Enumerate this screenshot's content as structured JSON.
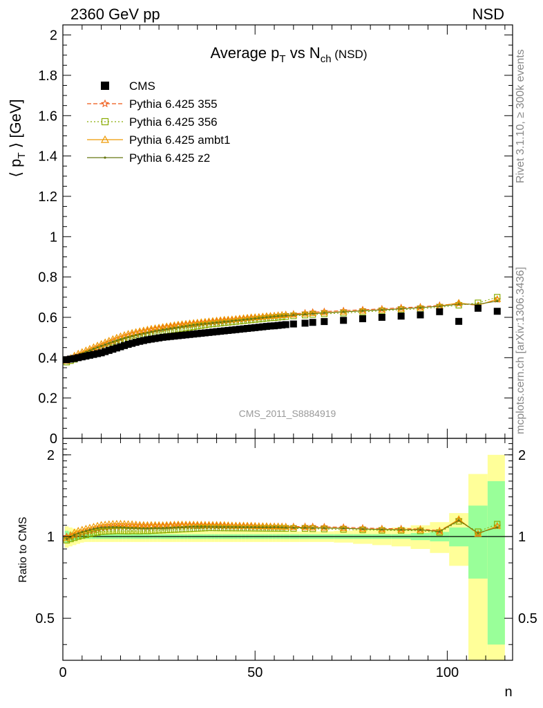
{
  "header": {
    "energy_label": "2360 GeV pp",
    "process_label": "NSD"
  },
  "side_labels": {
    "rivet": "Rivet 3.1.10, ≥ 300k events",
    "mcplots": "mcplots.cern.ch [arXiv:1306.3436]"
  },
  "chart_data": {
    "type": "scatter",
    "title": "Average p_T vs N_ch (NSD)",
    "analysis_id": "CMS_2011_S8884919",
    "xlabel": "n",
    "ylabel": "⟨ p_T ⟩ [GeV]",
    "ratio_ylabel": "Ratio to CMS",
    "xlim": [
      0,
      117
    ],
    "ylim": [
      0,
      2.05
    ],
    "ratio_ylim": [
      0.35,
      2.3
    ],
    "ratio_log": true,
    "x_ticks": [
      0,
      50,
      100
    ],
    "y_ticks": [
      0,
      0.2,
      0.4,
      0.6,
      0.8,
      1,
      1.2,
      1.4,
      1.6,
      1.8,
      2
    ],
    "y_tick_labels": [
      "0",
      "0.2",
      "0.4",
      "0.6",
      "0.8",
      "1",
      "1.2",
      "1.4",
      "1.6",
      "1.8",
      "2"
    ],
    "ratio_ticks": [
      0.5,
      1,
      2
    ],
    "ratio_tick_labels": [
      "0.5",
      "1",
      "2"
    ],
    "legend_position": "top-left",
    "x": [
      1,
      2,
      3,
      4,
      5,
      6,
      7,
      8,
      9,
      10,
      11,
      12,
      13,
      14,
      15,
      16,
      17,
      18,
      19,
      20,
      21,
      22,
      23,
      24,
      25,
      26,
      27,
      28,
      29,
      30,
      31,
      32,
      33,
      34,
      35,
      36,
      37,
      38,
      39,
      40,
      41,
      42,
      43,
      44,
      45,
      46,
      47,
      48,
      49,
      50,
      51,
      52,
      53,
      54,
      55,
      56,
      57,
      58,
      60,
      63,
      65,
      68,
      73,
      78,
      83,
      88,
      93,
      98,
      103,
      108,
      113
    ],
    "series": [
      {
        "name": "CMS",
        "color": "#000000",
        "marker": "square",
        "values": [
          0.39,
          0.393,
          0.396,
          0.4,
          0.404,
          0.408,
          0.412,
          0.416,
          0.42,
          0.424,
          0.43,
          0.436,
          0.442,
          0.448,
          0.454,
          0.46,
          0.466,
          0.471,
          0.476,
          0.481,
          0.485,
          0.489,
          0.492,
          0.495,
          0.498,
          0.501,
          0.503,
          0.505,
          0.507,
          0.509,
          0.511,
          0.513,
          0.515,
          0.517,
          0.519,
          0.521,
          0.523,
          0.525,
          0.527,
          0.529,
          0.531,
          0.533,
          0.535,
          0.537,
          0.539,
          0.541,
          0.543,
          0.545,
          0.547,
          0.549,
          0.551,
          0.553,
          0.555,
          0.557,
          0.558,
          0.56,
          0.562,
          0.564,
          0.567,
          0.571,
          0.575,
          0.579,
          0.585,
          0.593,
          0.6,
          0.606,
          0.612,
          0.628,
          0.58,
          0.645,
          0.63
        ],
        "band_inner": [
          0.05,
          0.04,
          0.03,
          0.025,
          0.02,
          0.02,
          0.02,
          0.02,
          0.02,
          0.02,
          0.02,
          0.02,
          0.02,
          0.02,
          0.02,
          0.02,
          0.02,
          0.02,
          0.02,
          0.02,
          0.02,
          0.02,
          0.02,
          0.02,
          0.02,
          0.02,
          0.02,
          0.02,
          0.02,
          0.02,
          0.02,
          0.02,
          0.02,
          0.02,
          0.02,
          0.02,
          0.02,
          0.02,
          0.02,
          0.02,
          0.02,
          0.02,
          0.02,
          0.02,
          0.02,
          0.02,
          0.02,
          0.02,
          0.02,
          0.02,
          0.02,
          0.02,
          0.02,
          0.02,
          0.02,
          0.02,
          0.02,
          0.02,
          0.02,
          0.02,
          0.02,
          0.02,
          0.02,
          0.02,
          0.02,
          0.02,
          0.03,
          0.04,
          0.08,
          0.3,
          0.6
        ],
        "band_outer": [
          0.09,
          0.08,
          0.07,
          0.06,
          0.05,
          0.045,
          0.045,
          0.045,
          0.045,
          0.045,
          0.045,
          0.045,
          0.045,
          0.045,
          0.045,
          0.045,
          0.045,
          0.045,
          0.045,
          0.045,
          0.045,
          0.045,
          0.045,
          0.045,
          0.045,
          0.045,
          0.045,
          0.045,
          0.045,
          0.045,
          0.045,
          0.045,
          0.045,
          0.045,
          0.045,
          0.045,
          0.045,
          0.045,
          0.045,
          0.045,
          0.045,
          0.045,
          0.045,
          0.045,
          0.045,
          0.045,
          0.045,
          0.045,
          0.045,
          0.045,
          0.045,
          0.045,
          0.045,
          0.045,
          0.045,
          0.045,
          0.045,
          0.045,
          0.045,
          0.045,
          0.045,
          0.045,
          0.05,
          0.06,
          0.07,
          0.08,
          0.1,
          0.13,
          0.22,
          0.7,
          1.0
        ]
      },
      {
        "name": "Pythia 6.425 355",
        "color": "#ee5511",
        "marker": "star",
        "dash": "6,3",
        "values": [
          0.39,
          0.392,
          0.4,
          0.408,
          0.416,
          0.424,
          0.432,
          0.44,
          0.448,
          0.456,
          0.464,
          0.472,
          0.48,
          0.487,
          0.494,
          0.501,
          0.507,
          0.513,
          0.518,
          0.523,
          0.527,
          0.531,
          0.535,
          0.539,
          0.543,
          0.546,
          0.549,
          0.552,
          0.555,
          0.558,
          0.56,
          0.562,
          0.564,
          0.566,
          0.568,
          0.57,
          0.572,
          0.574,
          0.576,
          0.578,
          0.58,
          0.582,
          0.584,
          0.586,
          0.588,
          0.59,
          0.592,
          0.594,
          0.596,
          0.598,
          0.6,
          0.602,
          0.604,
          0.606,
          0.608,
          0.61,
          0.612,
          0.614,
          0.617,
          0.622,
          0.626,
          0.629,
          0.633,
          0.638,
          0.642,
          0.648,
          0.652,
          0.66,
          0.668,
          0.66,
          0.688
        ]
      },
      {
        "name": "Pythia 6.425 356",
        "color": "#88aa00",
        "marker": "open-square",
        "dash": "2,3",
        "values": [
          0.378,
          0.385,
          0.392,
          0.4,
          0.407,
          0.414,
          0.421,
          0.428,
          0.435,
          0.442,
          0.449,
          0.456,
          0.463,
          0.47,
          0.476,
          0.482,
          0.488,
          0.494,
          0.499,
          0.504,
          0.509,
          0.513,
          0.517,
          0.521,
          0.525,
          0.529,
          0.532,
          0.535,
          0.538,
          0.541,
          0.544,
          0.547,
          0.55,
          0.553,
          0.556,
          0.559,
          0.562,
          0.565,
          0.567,
          0.569,
          0.571,
          0.573,
          0.575,
          0.577,
          0.579,
          0.581,
          0.583,
          0.585,
          0.587,
          0.589,
          0.591,
          0.593,
          0.595,
          0.597,
          0.598,
          0.6,
          0.602,
          0.604,
          0.607,
          0.611,
          0.614,
          0.617,
          0.621,
          0.627,
          0.632,
          0.638,
          0.642,
          0.65,
          0.66,
          0.672,
          0.7
        ]
      },
      {
        "name": "Pythia 6.425 ambt1",
        "color": "#ee9900",
        "marker": "open-triangle",
        "dash": "",
        "values": [
          0.385,
          0.398,
          0.41,
          0.42,
          0.428,
          0.436,
          0.444,
          0.452,
          0.46,
          0.468,
          0.476,
          0.484,
          0.492,
          0.499,
          0.506,
          0.512,
          0.518,
          0.523,
          0.527,
          0.531,
          0.535,
          0.539,
          0.543,
          0.546,
          0.549,
          0.552,
          0.555,
          0.558,
          0.561,
          0.564,
          0.566,
          0.568,
          0.57,
          0.572,
          0.574,
          0.576,
          0.578,
          0.58,
          0.582,
          0.584,
          0.586,
          0.588,
          0.589,
          0.59,
          0.592,
          0.594,
          0.596,
          0.598,
          0.6,
          0.601,
          0.602,
          0.604,
          0.606,
          0.607,
          0.608,
          0.61,
          0.611,
          0.612,
          0.614,
          0.618,
          0.621,
          0.624,
          0.628,
          0.633,
          0.638,
          0.643,
          0.648,
          0.656,
          0.672,
          0.66,
          0.69
        ]
      },
      {
        "name": "Pythia 6.425 z2",
        "color": "#667711",
        "marker": "dot",
        "dash": "",
        "values": [
          0.382,
          0.392,
          0.402,
          0.411,
          0.42,
          0.428,
          0.436,
          0.444,
          0.451,
          0.458,
          0.465,
          0.472,
          0.479,
          0.485,
          0.491,
          0.497,
          0.502,
          0.507,
          0.512,
          0.516,
          0.52,
          0.524,
          0.528,
          0.532,
          0.535,
          0.538,
          0.541,
          0.544,
          0.547,
          0.55,
          0.553,
          0.556,
          0.559,
          0.562,
          0.564,
          0.566,
          0.568,
          0.57,
          0.572,
          0.574,
          0.576,
          0.578,
          0.58,
          0.582,
          0.584,
          0.586,
          0.588,
          0.59,
          0.592,
          0.594,
          0.596,
          0.598,
          0.6,
          0.602,
          0.604,
          0.606,
          0.607,
          0.608,
          0.611,
          0.615,
          0.618,
          0.622,
          0.627,
          0.632,
          0.637,
          0.642,
          0.648,
          0.655,
          0.665,
          0.665,
          0.68
        ]
      }
    ]
  }
}
